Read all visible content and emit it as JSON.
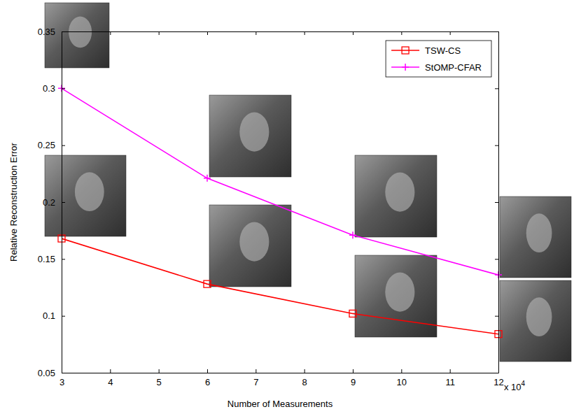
{
  "chart_data": {
    "type": "line",
    "x_label": "Number of Measurements",
    "y_label": "Relative Reconstruction Error",
    "annotations": [
      {
        "text": "x 10",
        "superscript": "4"
      }
    ],
    "x": [
      3,
      6,
      9,
      12
    ],
    "series": [
      {
        "name": "TSW-CS",
        "color": "#ff0000",
        "marker": "square",
        "line_style": "solid",
        "values": [
          0.168,
          0.128,
          0.102,
          0.084
        ]
      },
      {
        "name": "StOMP-CFAR",
        "color": "#ff00ff",
        "marker": "plus",
        "line_style": "solid",
        "values": [
          0.3,
          0.221,
          0.171,
          0.136
        ]
      }
    ],
    "xlim": [
      3,
      12
    ],
    "xticks": [
      3,
      4,
      5,
      6,
      7,
      8,
      9,
      10,
      11,
      12
    ],
    "ylim": [
      0.05,
      0.35
    ],
    "yticks": [
      0.05,
      0.1,
      0.15,
      0.2,
      0.25,
      0.3,
      0.35
    ],
    "grid": false,
    "legend": "top-right"
  }
}
